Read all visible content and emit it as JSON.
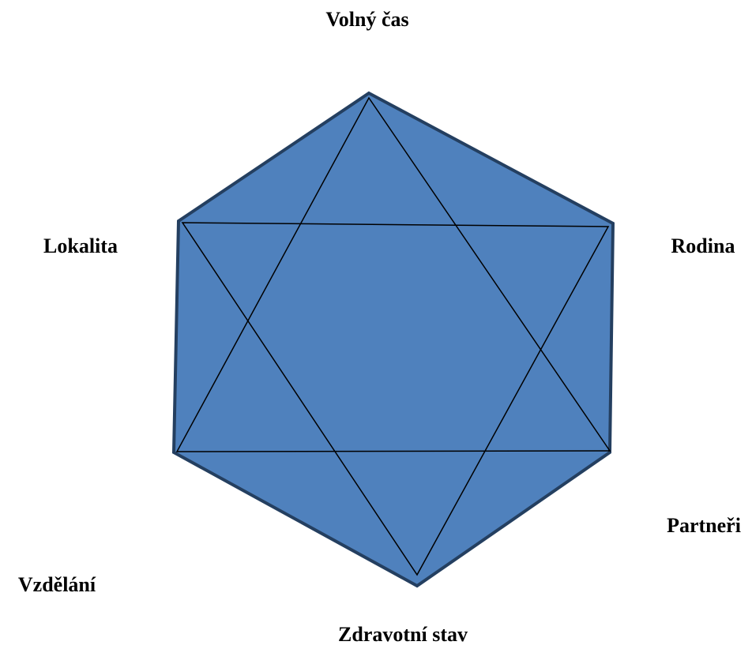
{
  "nodes": [
    {
      "label": "Volný čas"
    },
    {
      "label": "Rodina"
    },
    {
      "label": "Partneři"
    },
    {
      "label": "Zdravotní stav"
    },
    {
      "label": "Vzdělání"
    },
    {
      "label": "Lokalita"
    }
  ]
}
